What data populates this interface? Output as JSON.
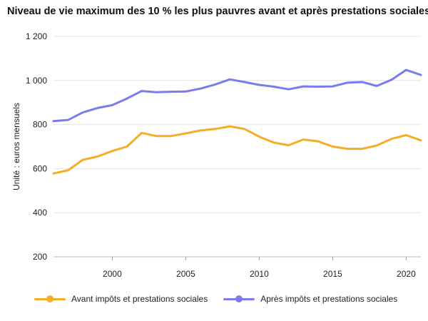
{
  "chart_data": {
    "type": "line",
    "title": "Niveau de vie maximum des 10 % les plus pauvres avant et après prestations sociales",
    "ylabel": "Unité : euros mensuels",
    "xlabel": "",
    "ylim": [
      200,
      1200
    ],
    "xlim": [
      1996,
      2021
    ],
    "y_ticks": [
      {
        "value": 200,
        "label": "200"
      },
      {
        "value": 400,
        "label": "400"
      },
      {
        "value": 600,
        "label": "600"
      },
      {
        "value": 800,
        "label": "800"
      },
      {
        "value": 1000,
        "label": "1 000"
      },
      {
        "value": 1200,
        "label": "1 200"
      }
    ],
    "x_ticks": [
      {
        "value": 2000,
        "label": "2000"
      },
      {
        "value": 2005,
        "label": "2005"
      },
      {
        "value": 2010,
        "label": "2010"
      },
      {
        "value": 2015,
        "label": "2015"
      },
      {
        "value": 2020,
        "label": "2020"
      }
    ],
    "grid": true,
    "legend": "bottom",
    "x": [
      1996,
      1997,
      1998,
      1999,
      2000,
      2001,
      2002,
      2003,
      2004,
      2005,
      2006,
      2007,
      2008,
      2009,
      2010,
      2011,
      2012,
      2013,
      2014,
      2015,
      2016,
      2017,
      2018,
      2019,
      2020,
      2021
    ],
    "series": [
      {
        "name": "Avant impôts et prestations sociales",
        "color": "#f5ad25",
        "values": [
          578,
          593,
          640,
          655,
          680,
          700,
          762,
          748,
          748,
          760,
          773,
          780,
          792,
          780,
          745,
          718,
          706,
          732,
          724,
          700,
          690,
          690,
          705,
          735,
          752,
          728
        ]
      },
      {
        "name": "Après impôts et prestations sociales",
        "color": "#7b7bef",
        "values": [
          816,
          821,
          855,
          875,
          888,
          918,
          952,
          947,
          949,
          950,
          963,
          982,
          1005,
          993,
          980,
          972,
          960,
          973,
          972,
          973,
          990,
          993,
          975,
          1003,
          1048,
          1025
        ]
      }
    ]
  }
}
